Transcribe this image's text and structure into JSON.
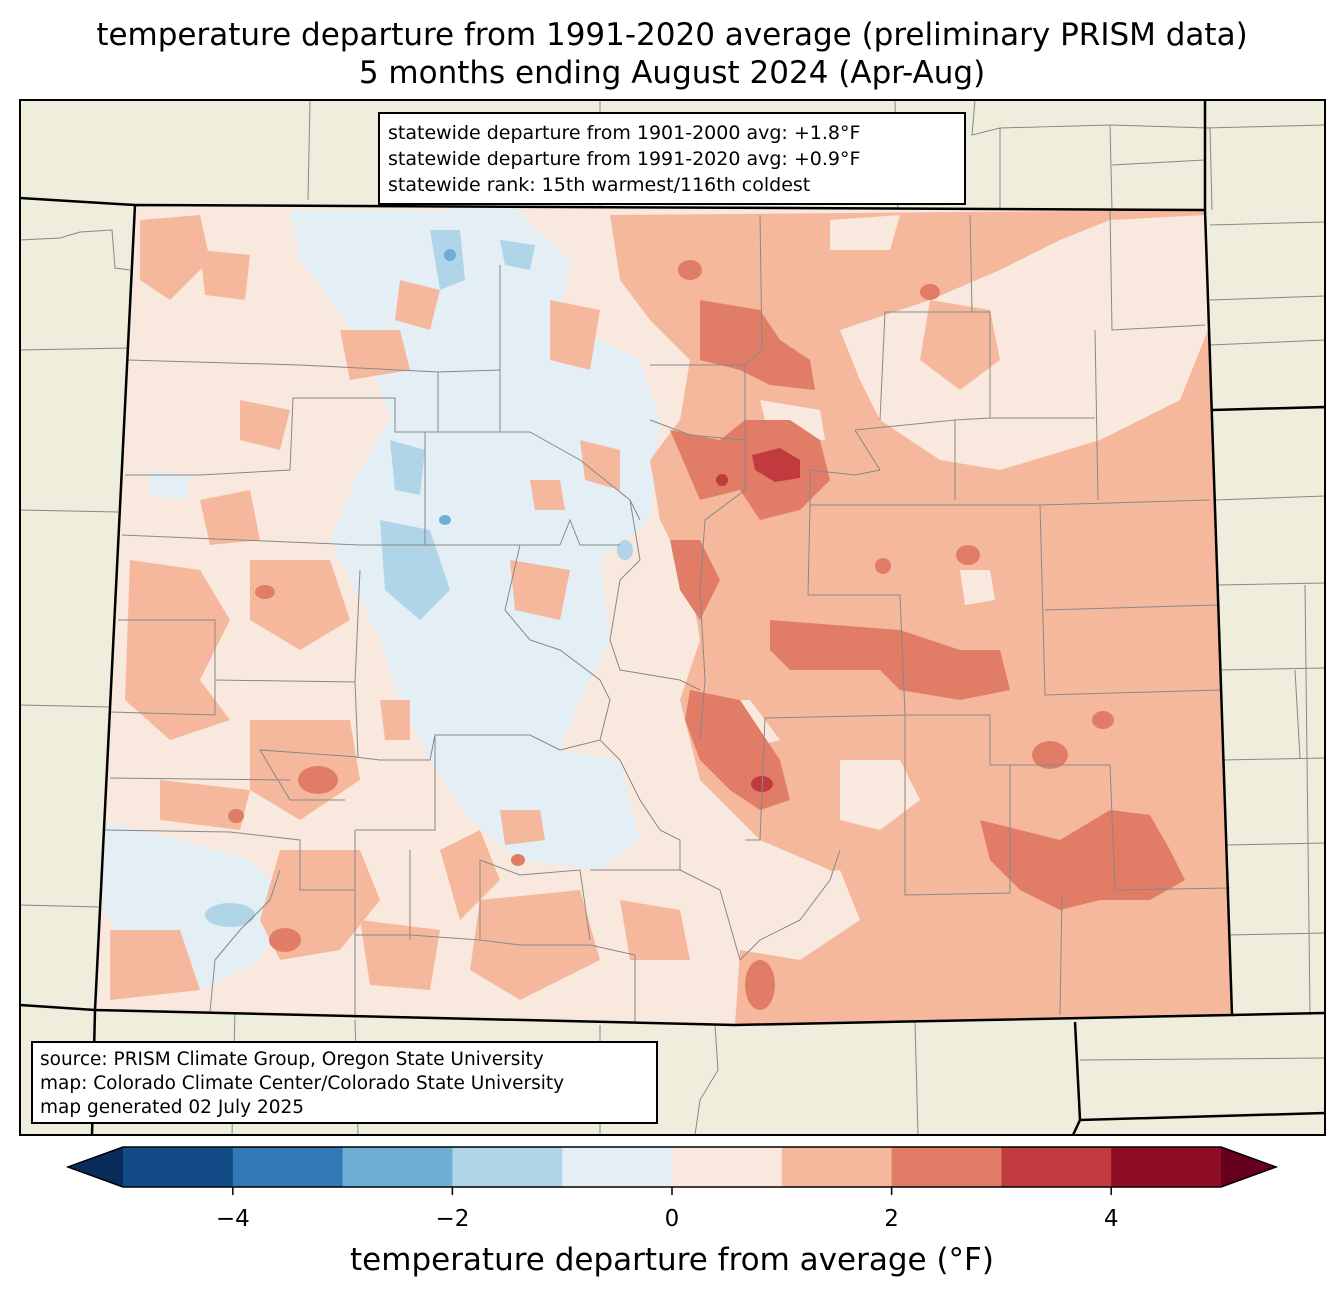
{
  "title": {
    "line1": "temperature departure from 1991-2020 average (preliminary PRISM data)",
    "line2": "5 months ending August 2024 (Apr-Aug)"
  },
  "stats_box": {
    "line1": "statewide departure from 1901-2000 avg: +1.8°F",
    "line2": "statewide departure from 1991-2020 avg: +0.9°F",
    "line3": "statewide rank: 15th warmest/116th coldest"
  },
  "source_box": {
    "line1": "source: PRISM Climate Group, Oregon State University",
    "line2": "map: Colorado Climate Center/Colorado State University",
    "line3": "map generated 02 July 2025"
  },
  "colorbar": {
    "label": "temperature departure from average (°F)",
    "min": -5,
    "max": 5,
    "ticks": [
      {
        "value": -4,
        "label": "−4"
      },
      {
        "value": -2,
        "label": "−2"
      },
      {
        "value": 0,
        "label": "0"
      },
      {
        "value": 2,
        "label": "2"
      },
      {
        "value": 4,
        "label": "4"
      }
    ],
    "extend": "both",
    "under_color": "#0a2c5c",
    "over_color": "#67001f",
    "bins": [
      {
        "from": -5,
        "to": -4,
        "color": "#134b87"
      },
      {
        "from": -4,
        "to": -3,
        "color": "#3079b6"
      },
      {
        "from": -3,
        "to": -2,
        "color": "#6daed2"
      },
      {
        "from": -2,
        "to": -1,
        "color": "#b1d5e8"
      },
      {
        "from": -1,
        "to": 0,
        "color": "#e4eef5"
      },
      {
        "from": 0,
        "to": 1,
        "color": "#f9e8de"
      },
      {
        "from": 1,
        "to": 2,
        "color": "#f6b89c"
      },
      {
        "from": 2,
        "to": 3,
        "color": "#e17d67"
      },
      {
        "from": 3,
        "to": 4,
        "color": "#c13a3d"
      },
      {
        "from": 4,
        "to": 5,
        "color": "#8c0d24"
      }
    ]
  },
  "map_colors": {
    "land": "#efeedc",
    "state_border": "#000000",
    "county_border": "#888888"
  }
}
